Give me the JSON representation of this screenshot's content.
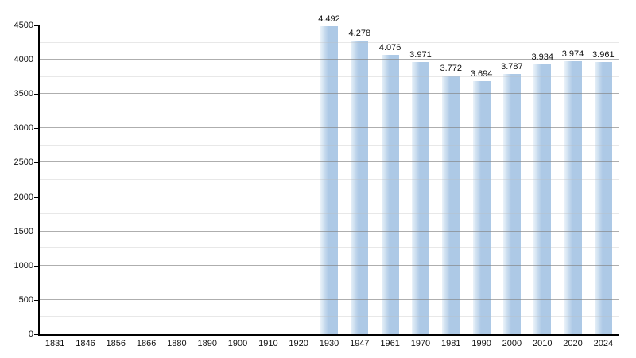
{
  "chart_data": {
    "type": "bar",
    "title": "",
    "xlabel": "",
    "ylabel": "",
    "categories": [
      "1831",
      "1846",
      "1856",
      "1866",
      "1880",
      "1890",
      "1900",
      "1910",
      "1920",
      "1930",
      "1947",
      "1961",
      "1970",
      "1981",
      "1990",
      "2000",
      "2010",
      "2020",
      "2024"
    ],
    "values": [
      null,
      null,
      null,
      null,
      null,
      null,
      null,
      null,
      null,
      4492,
      4278,
      4076,
      3971,
      3772,
      3694,
      3787,
      3934,
      3974,
      3961
    ],
    "value_labels": [
      "",
      "",
      "",
      "",
      "",
      "",
      "",
      "",
      "",
      "4.492",
      "4.278",
      "4.076",
      "3.971",
      "3.772",
      "3.694",
      "3.787",
      "3.934",
      "3.974",
      "3.961"
    ],
    "ylim": [
      0,
      4500
    ],
    "y_ticks": [
      0,
      500,
      1000,
      1500,
      2000,
      2500,
      3000,
      3500,
      4000,
      4500
    ],
    "y_minor_step": 250,
    "grid": true,
    "legend_position": "none",
    "colors": {
      "bar": "#adc9e6",
      "bar_gradient_light": "#eaf2f9",
      "axis": "#000000",
      "major_grid": "rgba(130,130,130,0.65)",
      "minor_grid": "rgba(190,190,190,0.35)",
      "text": "#111111",
      "background": "#ffffff"
    }
  }
}
